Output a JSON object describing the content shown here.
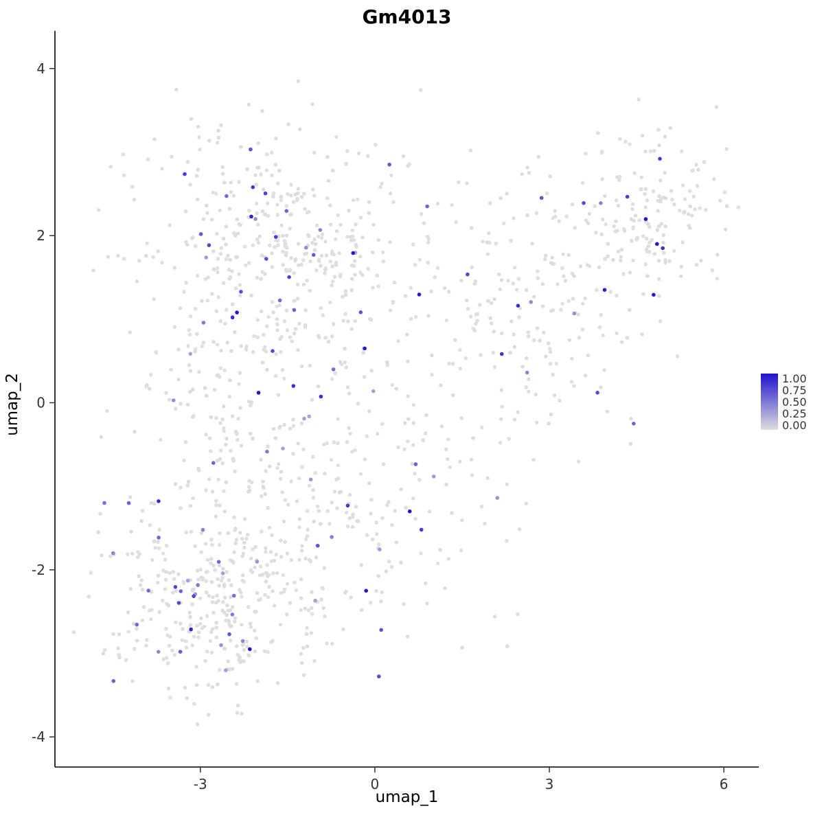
{
  "title": "Gm4013",
  "axes": {
    "x": {
      "label": "umap_1",
      "ticks": [
        {
          "v": -3,
          "label": "-3"
        },
        {
          "v": 0,
          "label": "0"
        },
        {
          "v": 3,
          "label": "3"
        },
        {
          "v": 6,
          "label": "6"
        }
      ]
    },
    "y": {
      "label": "umap_2",
      "ticks": [
        {
          "v": -4,
          "label": "-4"
        },
        {
          "v": -2,
          "label": "-2"
        },
        {
          "v": 0,
          "label": "0"
        },
        {
          "v": 2,
          "label": "2"
        },
        {
          "v": 4,
          "label": "4"
        }
      ]
    }
  },
  "legend": {
    "labels": [
      "1.00",
      "0.75",
      "0.50",
      "0.25",
      "0.00"
    ],
    "color_high": "#2012CE",
    "color_low": "#DEDEDE"
  },
  "chart_data": {
    "type": "scatter",
    "title": "Gm4013",
    "xlabel": "umap_1",
    "ylabel": "umap_2",
    "xlim": [
      -5.5,
      6.6
    ],
    "ylim": [
      -4.36,
      4.45
    ],
    "grid": false,
    "legend_position": "right",
    "point_radius": 2.8,
    "color_scale": {
      "low": "#DEDEDE",
      "high": "#2012CE",
      "domain": [
        0,
        1
      ]
    },
    "seed": 42,
    "colored_fraction": 0.055,
    "value_min": 0.3,
    "clusters": [
      {
        "cx": -1.9,
        "cy": 2.0,
        "sx": 1.05,
        "sy": 0.65,
        "n": 300
      },
      {
        "cx": -0.2,
        "cy": 1.6,
        "sx": 1.1,
        "sy": 0.8,
        "n": 110
      },
      {
        "cx": -2.3,
        "cy": 0.1,
        "sx": 0.95,
        "sy": 0.75,
        "n": 180
      },
      {
        "cx": -2.8,
        "cy": -2.3,
        "sx": 0.9,
        "sy": 0.6,
        "n": 340
      },
      {
        "cx": -1.0,
        "cy": -1.6,
        "sx": 1.1,
        "sy": 0.75,
        "n": 140
      },
      {
        "cx": 0.6,
        "cy": -0.6,
        "sx": 1.0,
        "sy": 1.0,
        "n": 80
      },
      {
        "cx": 2.3,
        "cy": 0.4,
        "sx": 0.9,
        "sy": 0.7,
        "n": 80
      },
      {
        "cx": 3.5,
        "cy": 1.3,
        "sx": 0.8,
        "sy": 0.65,
        "n": 70
      },
      {
        "cx": 4.8,
        "cy": 2.3,
        "sx": 0.55,
        "sy": 0.5,
        "n": 130
      },
      {
        "cx": 2.9,
        "cy": 2.1,
        "sx": 1.0,
        "sy": 0.55,
        "n": 45
      }
    ],
    "extra_points": [
      [
        -4.65,
        -1.2,
        0.55
      ],
      [
        -4.72,
        -1.33,
        0
      ],
      [
        -4.5,
        -1.8,
        0.45
      ],
      [
        4.45,
        -0.25,
        0.6
      ],
      [
        4.85,
        1.9,
        1.0
      ],
      [
        4.95,
        1.85,
        0.85
      ],
      [
        4.9,
        2.92,
        0.8
      ],
      [
        3.95,
        1.35,
        0.95
      ],
      [
        -2.0,
        0.12,
        1.0
      ],
      [
        -1.4,
        0.2,
        0.85
      ],
      [
        0.6,
        -1.3,
        1.0
      ],
      [
        0.8,
        -1.52,
        0.8
      ],
      [
        -0.15,
        -2.25,
        1.0
      ],
      [
        -2.15,
        -2.95,
        1.0
      ],
      [
        0.25,
        2.85,
        0.65
      ],
      [
        0.9,
        2.35,
        0.6
      ],
      [
        1.65,
        3.02,
        0
      ]
    ]
  }
}
